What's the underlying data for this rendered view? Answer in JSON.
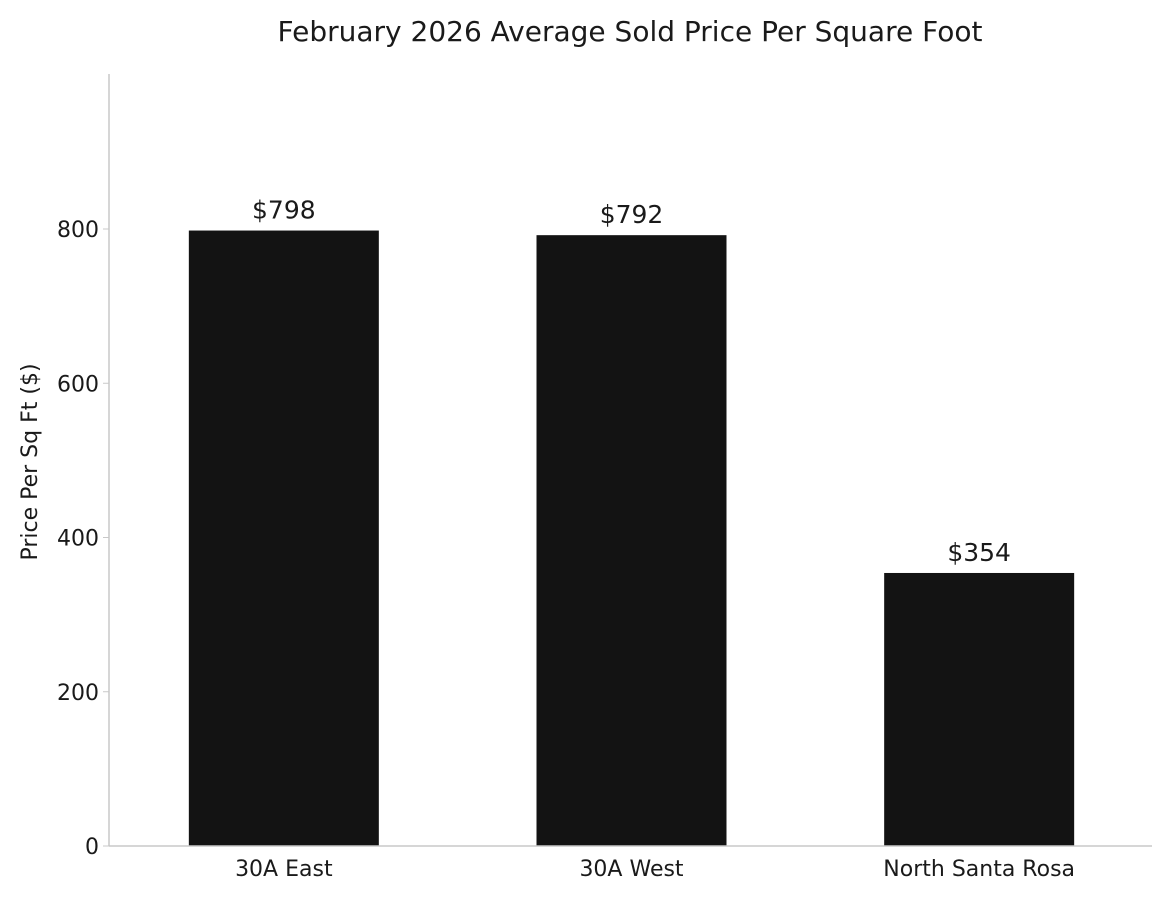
{
  "chart_data": {
    "type": "bar",
    "title": "February 2026 Average Sold Price Per Square Foot",
    "xlabel": "",
    "ylabel": "Price Per Sq Ft ($)",
    "categories": [
      "30A East",
      "30A West",
      "North Santa Rosa"
    ],
    "values": [
      798,
      792,
      354
    ],
    "value_labels": [
      "$798",
      "$792",
      "$354"
    ],
    "ylim": [
      0,
      1000
    ],
    "yticks": [
      0,
      200,
      400,
      600,
      800
    ],
    "ytick_labels": [
      "0",
      "200",
      "400",
      "600",
      "800"
    ],
    "grid": false,
    "legend": "none",
    "bar_color": "#131313",
    "axis_color": "#c8c8c8"
  }
}
